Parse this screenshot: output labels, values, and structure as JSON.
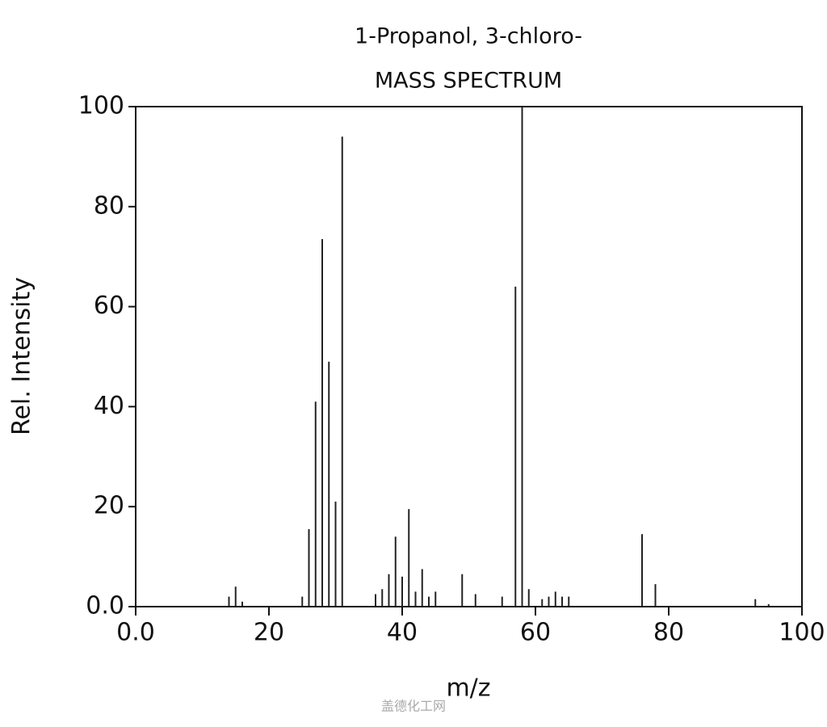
{
  "chart_data": {
    "type": "bar",
    "title": "1-Propanol, 3-chloro-",
    "subtitle": "MASS SPECTRUM",
    "x_label": "m/z",
    "y_label": "Rel. Intensity",
    "watermark": "盖德化工网",
    "x": [
      14,
      15,
      16,
      25,
      26,
      27,
      28,
      29,
      30,
      31,
      36,
      37,
      38,
      39,
      40,
      41,
      42,
      43,
      44,
      45,
      49,
      51,
      55,
      57,
      58,
      59,
      61,
      62,
      63,
      64,
      65,
      76,
      78,
      93,
      95
    ],
    "values": [
      2,
      4,
      1,
      2,
      15.5,
      41,
      73.5,
      49,
      21,
      94,
      2.5,
      3.5,
      6.5,
      14,
      6,
      19.5,
      3,
      7.5,
      2,
      3,
      6.5,
      2.5,
      2,
      64,
      100,
      3.5,
      1.5,
      2,
      3,
      2,
      2,
      14.5,
      4.5,
      1.5,
      0.5
    ],
    "color": "#222222",
    "xlim": [
      0,
      100
    ],
    "ylim": [
      0,
      100
    ],
    "xticks": [
      {
        "value": 0,
        "label": "0.0"
      },
      20,
      40,
      60,
      80,
      100
    ],
    "yticks": [
      {
        "value": 0,
        "label": "0.0"
      },
      20,
      40,
      60,
      80,
      100
    ]
  }
}
